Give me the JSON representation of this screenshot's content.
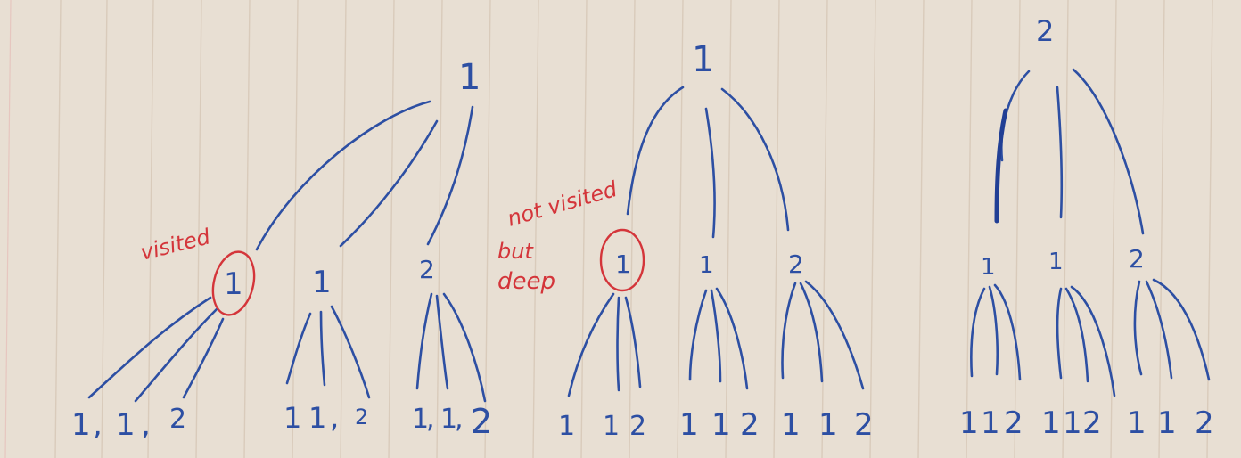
{
  "trees": [
    {
      "root": "1",
      "children": [
        {
          "label": "1",
          "leaves": [
            "1",
            ",",
            "1",
            ",",
            "2"
          ]
        },
        {
          "label": "1",
          "leaves": [
            "1",
            "1",
            ",",
            "2"
          ]
        },
        {
          "label": "2",
          "leaves": [
            "1",
            ",",
            "1",
            ",",
            "2"
          ]
        }
      ]
    },
    {
      "root": "1",
      "children": [
        {
          "label": "1",
          "leaves": [
            "1",
            "1",
            "2"
          ]
        },
        {
          "label": "1",
          "leaves": [
            "1",
            "1",
            "2"
          ]
        },
        {
          "label": "2",
          "leaves": [
            "1",
            "1",
            "2"
          ]
        }
      ]
    },
    {
      "root": "2",
      "children": [
        {
          "label": "1",
          "leaves": [
            "1",
            "1",
            "2"
          ]
        },
        {
          "label": "1",
          "leaves": [
            "1",
            "1",
            "2"
          ]
        },
        {
          "label": "2",
          "leaves": [
            "1",
            "1",
            "2"
          ]
        }
      ]
    }
  ],
  "annotations": {
    "visited": "visited",
    "not_visited_1": "not visited",
    "not_visited_2": "but",
    "not_visited_3": "deep"
  },
  "colors": {
    "paper": "#e8dfd3",
    "ink_blue": "#2d4fa3",
    "ink_red": "#d4353a"
  }
}
